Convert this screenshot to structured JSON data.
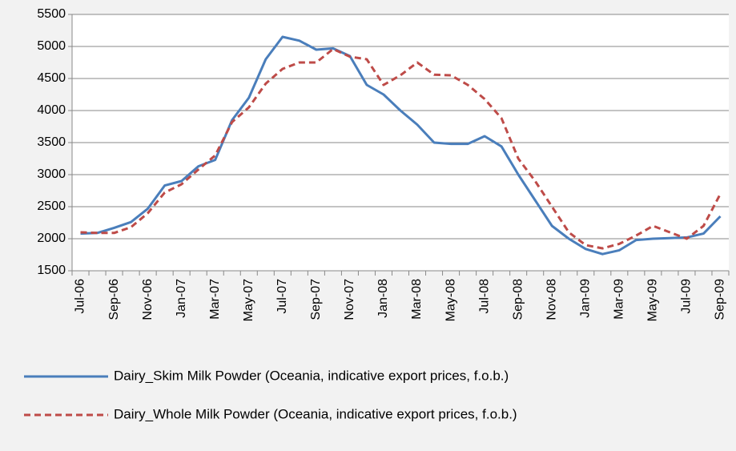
{
  "chart_data": {
    "type": "line",
    "categories": [
      "Jul-06",
      null,
      "Sep-06",
      null,
      "Nov-06",
      null,
      "Jan-07",
      null,
      "Mar-07",
      null,
      "May-07",
      null,
      "Jul-07",
      null,
      "Sep-07",
      null,
      "Nov-07",
      null,
      "Jan-08",
      null,
      "Mar-08",
      null,
      "May-08",
      null,
      "Jul-08",
      null,
      "Sep-08",
      null,
      "Nov-08",
      null,
      "Jan-09",
      null,
      "Mar-09",
      null,
      "May-09",
      null,
      "Jul-09",
      null,
      "Sep-09"
    ],
    "series": [
      {
        "name": "Dairy_Skim Milk Powder (Oceania, indicative export prices, f.o.b.)",
        "color": "#4a7ebb",
        "dash": false,
        "values": [
          2080,
          2090,
          2170,
          2260,
          2470,
          2830,
          2900,
          3130,
          3230,
          3850,
          4200,
          4800,
          5150,
          5090,
          4950,
          4970,
          4850,
          4400,
          4250,
          4000,
          3780,
          3500,
          3480,
          3480,
          3600,
          3440,
          3000,
          2600,
          2200,
          2000,
          1840,
          1760,
          1820,
          1980,
          2000,
          2010,
          2020,
          2080,
          2350
        ]
      },
      {
        "name": "Dairy_Whole Milk Powder (Oceania, indicative export prices, f.o.b.)",
        "color": "#be4b48",
        "dash": true,
        "values": [
          2100,
          2090,
          2090,
          2180,
          2400,
          2720,
          2850,
          3080,
          3300,
          3820,
          4050,
          4420,
          4650,
          4750,
          4750,
          4960,
          4840,
          4800,
          4400,
          4550,
          4750,
          4560,
          4550,
          4400,
          4180,
          3880,
          3250,
          2900,
          2500,
          2100,
          1900,
          1850,
          1920,
          2050,
          2200,
          2100,
          2000,
          2200,
          2700
        ]
      }
    ],
    "ylim": [
      1500,
      5500
    ],
    "yticks": [
      1500,
      2000,
      2500,
      3000,
      3500,
      4000,
      4500,
      5000,
      5500
    ],
    "grid": true
  }
}
